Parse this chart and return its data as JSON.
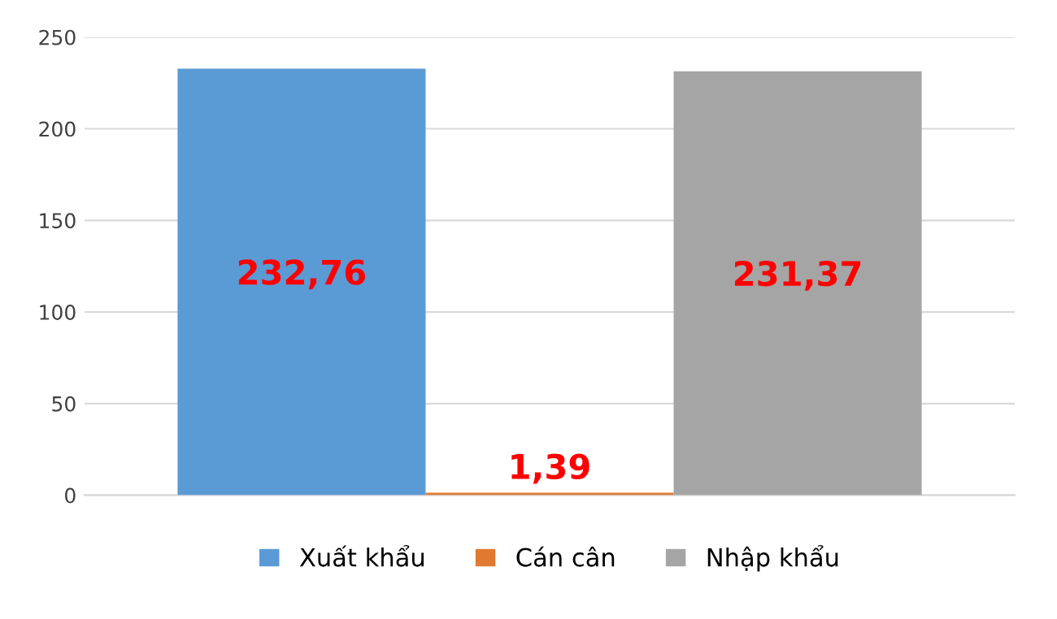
{
  "chart_data": {
    "type": "bar",
    "categories": [
      null
    ],
    "series": [
      {
        "name": "Xuất khẩu",
        "color": "#5b9bd5",
        "values": [
          232.76
        ],
        "value_labels": [
          "232,76"
        ]
      },
      {
        "name": "Cán cân",
        "color": "#e07a30",
        "values": [
          1.39
        ],
        "value_labels": [
          "1,39"
        ]
      },
      {
        "name": "Nhập khẩu",
        "color": "#a5a5a5",
        "values": [
          231.37
        ],
        "value_labels": [
          "231,37"
        ]
      }
    ],
    "ylim": [
      0,
      250
    ],
    "yticks": [
      0,
      50,
      100,
      150,
      200,
      250
    ],
    "grid": "y",
    "legend": "bottom"
  }
}
